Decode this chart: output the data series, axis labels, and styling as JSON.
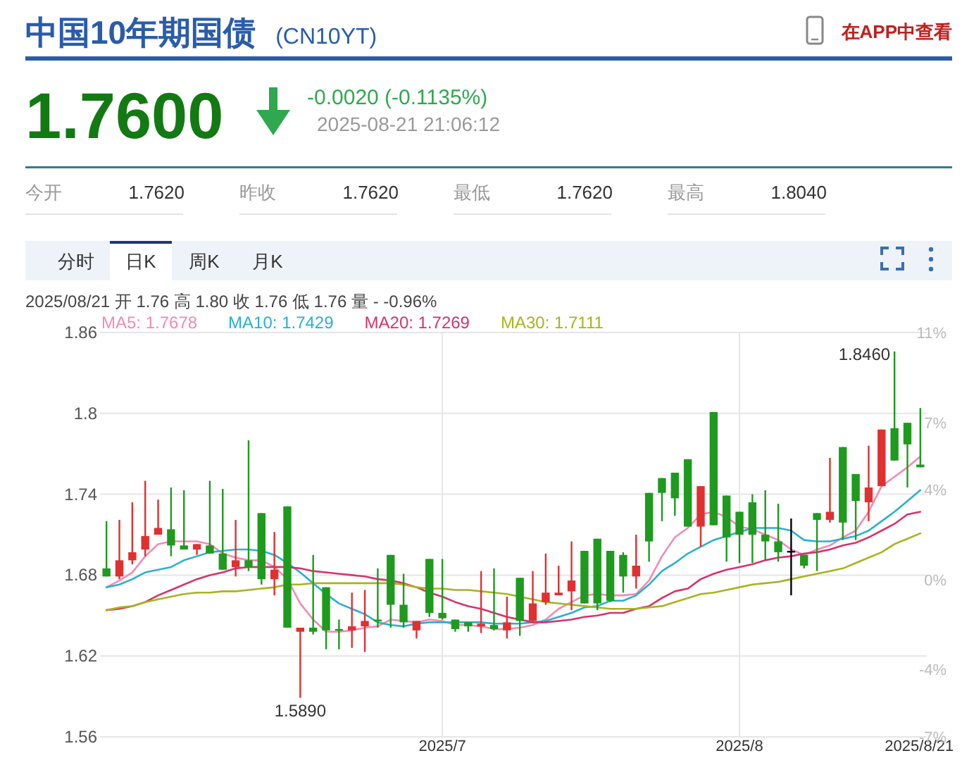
{
  "chart_data": {
    "type": "candlestick",
    "title": "中国10年期国债",
    "subtitle": "(CN10YT)",
    "categories": [
      null,
      null,
      null,
      null,
      null,
      null,
      null,
      null,
      null,
      null,
      null,
      null,
      null,
      null,
      null,
      null,
      null,
      null,
      null,
      null,
      null,
      null,
      null,
      null,
      null,
      null,
      "2025/7",
      null,
      null,
      null,
      null,
      null,
      null,
      null,
      null,
      null,
      null,
      null,
      null,
      null,
      null,
      null,
      null,
      null,
      null,
      null,
      null,
      null,
      null,
      "2025/8",
      null,
      null,
      null,
      null,
      null,
      null,
      null,
      null,
      null,
      null,
      null,
      null,
      null,
      "2025/8/21"
    ],
    "ohlc": [
      [
        1.685,
        1.72,
        1.679,
        1.679
      ],
      [
        1.679,
        1.721,
        1.677,
        1.691
      ],
      [
        1.691,
        1.734,
        1.688,
        1.697
      ],
      [
        1.699,
        1.75,
        1.694,
        1.709
      ],
      [
        1.71,
        1.736,
        1.71,
        1.715
      ],
      [
        1.714,
        1.745,
        1.694,
        1.702
      ],
      [
        1.702,
        1.743,
        1.699,
        1.699
      ],
      [
        1.699,
        1.703,
        1.695,
        1.703
      ],
      [
        1.702,
        1.75,
        1.696,
        1.696
      ],
      [
        1.696,
        1.744,
        1.684,
        1.684
      ],
      [
        1.686,
        1.721,
        1.679,
        1.691
      ],
      [
        1.691,
        1.78,
        1.683,
        1.686
      ],
      [
        1.726,
        1.726,
        1.673,
        1.677
      ],
      [
        1.677,
        1.712,
        1.665,
        1.684
      ],
      [
        1.731,
        1.731,
        1.641,
        1.641
      ],
      [
        1.638,
        1.641,
        1.589,
        1.641
      ],
      [
        1.641,
        1.695,
        1.636,
        1.638
      ],
      [
        1.671,
        1.671,
        1.625,
        1.639
      ],
      [
        1.64,
        1.647,
        1.625,
        1.639
      ],
      [
        1.639,
        1.667,
        1.626,
        1.642
      ],
      [
        1.642,
        1.669,
        1.623,
        1.646
      ],
      [
        1.647,
        1.685,
        1.641,
        1.646
      ],
      [
        1.695,
        1.695,
        1.641,
        1.658
      ],
      [
        1.658,
        1.681,
        1.641,
        1.645
      ],
      [
        1.639,
        1.646,
        1.633,
        1.646
      ],
      [
        1.692,
        1.692,
        1.649,
        1.652
      ],
      [
        1.652,
        1.692,
        1.647,
        1.648
      ],
      [
        1.647,
        1.647,
        1.638,
        1.64
      ],
      [
        1.645,
        1.645,
        1.638,
        1.642
      ],
      [
        1.642,
        1.683,
        1.637,
        1.644
      ],
      [
        1.643,
        1.685,
        1.639,
        1.64
      ],
      [
        1.639,
        1.664,
        1.633,
        1.645
      ],
      [
        1.678,
        1.678,
        1.635,
        1.646
      ],
      [
        1.646,
        1.683,
        1.645,
        1.659
      ],
      [
        1.66,
        1.696,
        1.658,
        1.667
      ],
      [
        1.665,
        1.687,
        1.665,
        1.667
      ],
      [
        1.668,
        1.705,
        1.654,
        1.676
      ],
      [
        1.698,
        1.698,
        1.659,
        1.659
      ],
      [
        1.707,
        1.707,
        1.654,
        1.659
      ],
      [
        1.698,
        1.698,
        1.66,
        1.661
      ],
      [
        1.695,
        1.697,
        1.667,
        1.679
      ],
      [
        1.679,
        1.71,
        1.67,
        1.687
      ],
      [
        1.741,
        1.741,
        1.69,
        1.705
      ],
      [
        1.752,
        1.752,
        1.72,
        1.741
      ],
      [
        1.756,
        1.756,
        1.724,
        1.737
      ],
      [
        1.766,
        1.766,
        1.716,
        1.716
      ],
      [
        1.716,
        1.746,
        1.701,
        1.746
      ],
      [
        1.801,
        1.801,
        1.717,
        1.717
      ],
      [
        1.739,
        1.739,
        1.69,
        1.708
      ],
      [
        1.727,
        1.727,
        1.689,
        1.71
      ],
      [
        1.734,
        1.74,
        1.689,
        1.71
      ],
      [
        1.71,
        1.743,
        1.691,
        1.705
      ],
      [
        1.705,
        1.733,
        1.69,
        1.697
      ],
      [
        1.698,
        1.722,
        1.665,
        1.698
      ],
      [
        1.695,
        1.695,
        1.685,
        1.687
      ],
      [
        1.726,
        1.726,
        1.683,
        1.721
      ],
      [
        1.721,
        1.767,
        1.719,
        1.727
      ],
      [
        1.775,
        1.775,
        1.706,
        1.719
      ],
      [
        1.755,
        1.755,
        1.706,
        1.735
      ],
      [
        1.734,
        1.776,
        1.72,
        1.745
      ],
      [
        1.746,
        1.788,
        1.746,
        1.788
      ],
      [
        1.789,
        1.846,
        1.765,
        1.765
      ],
      [
        1.793,
        1.793,
        1.745,
        1.777
      ],
      [
        1.762,
        1.804,
        1.76,
        1.76
      ]
    ],
    "colors": [
      "#1e9a1e",
      "#e03030",
      "#e03030",
      "#e03030",
      "#e03030",
      "#1e9a1e",
      "#1e9a1e",
      "#e03030",
      "#1e9a1e",
      "#1e9a1e",
      "#e03030",
      "#1e9a1e",
      "#1e9a1e",
      "#e03030",
      "#1e9a1e",
      "#e03030",
      "#1e9a1e",
      "#1e9a1e",
      "#1e9a1e",
      "#e03030",
      "#e03030",
      "#1e9a1e",
      "#1e9a1e",
      "#1e9a1e",
      "#e03030",
      "#1e9a1e",
      "#1e9a1e",
      "#1e9a1e",
      "#1e9a1e",
      "#e03030",
      "#1e9a1e",
      "#e03030",
      "#1e9a1e",
      "#e03030",
      "#e03030",
      "#e03030",
      "#e03030",
      "#1e9a1e",
      "#1e9a1e",
      "#1e9a1e",
      "#1e9a1e",
      "#e03030",
      "#1e9a1e",
      "#1e9a1e",
      "#1e9a1e",
      "#1e9a1e",
      "#e03030",
      "#1e9a1e",
      "#1e9a1e",
      "#1e9a1e",
      "#1e9a1e",
      "#1e9a1e",
      "#1e9a1e",
      "#000000",
      "#1e9a1e",
      "#1e9a1e",
      "#e03030",
      "#1e9a1e",
      "#1e9a1e",
      "#e03030",
      "#e03030",
      "#1e9a1e",
      "#1e9a1e",
      "#1e9a1e"
    ],
    "series": [
      {
        "name": "MA5: 1.7678",
        "type": "line",
        "color": "#f08cb4",
        "values": [
          1.671,
          1.676,
          1.682,
          1.694,
          1.703,
          1.705,
          1.705,
          1.705,
          1.703,
          1.696,
          1.693,
          1.691,
          1.691,
          1.686,
          1.677,
          1.659,
          1.647,
          1.638,
          1.638,
          1.639,
          1.641,
          1.642,
          1.647,
          1.646,
          1.645,
          1.647,
          1.646,
          1.643,
          1.643,
          1.642,
          1.64,
          1.64,
          1.641,
          1.643,
          1.647,
          1.655,
          1.66,
          1.665,
          1.666,
          1.665,
          1.665,
          1.666,
          1.676,
          1.694,
          1.708,
          1.715,
          1.725,
          1.727,
          1.723,
          1.716,
          1.714,
          1.71,
          1.706,
          1.699,
          1.695,
          1.699,
          1.702,
          1.708,
          1.713,
          1.727,
          1.746,
          1.753,
          1.76,
          1.768
        ]
      },
      {
        "name": "MA10: 1.7429",
        "type": "line",
        "color": "#2ab0d0",
        "values": [
          1.671,
          1.673,
          1.677,
          1.682,
          1.684,
          1.686,
          1.691,
          1.694,
          1.697,
          1.698,
          1.699,
          1.699,
          1.698,
          1.695,
          1.689,
          1.682,
          1.674,
          1.666,
          1.659,
          1.655,
          1.651,
          1.645,
          1.643,
          1.642,
          1.644,
          1.645,
          1.645,
          1.645,
          1.645,
          1.645,
          1.644,
          1.644,
          1.644,
          1.645,
          1.646,
          1.649,
          1.652,
          1.656,
          1.657,
          1.661,
          1.661,
          1.665,
          1.673,
          1.683,
          1.689,
          1.696,
          1.701,
          1.706,
          1.709,
          1.712,
          1.715,
          1.715,
          1.715,
          1.713,
          1.706,
          1.705,
          1.705,
          1.707,
          1.709,
          1.713,
          1.72,
          1.727,
          1.735,
          1.743
        ]
      },
      {
        "name": "MA20: 1.7269",
        "type": "line",
        "color": "#d6336c",
        "values": [
          1.654,
          1.655,
          1.657,
          1.66,
          1.665,
          1.669,
          1.673,
          1.677,
          1.68,
          1.682,
          1.685,
          1.686,
          1.686,
          1.686,
          1.686,
          1.685,
          1.683,
          1.682,
          1.681,
          1.68,
          1.679,
          1.677,
          1.676,
          1.674,
          1.671,
          1.667,
          1.664,
          1.66,
          1.657,
          1.655,
          1.652,
          1.649,
          1.647,
          1.645,
          1.645,
          1.646,
          1.647,
          1.649,
          1.65,
          1.652,
          1.652,
          1.655,
          1.657,
          1.663,
          1.668,
          1.67,
          1.677,
          1.681,
          1.684,
          1.686,
          1.688,
          1.691,
          1.693,
          1.694,
          1.696,
          1.697,
          1.699,
          1.702,
          1.704,
          1.708,
          1.713,
          1.718,
          1.725,
          1.727
        ]
      },
      {
        "name": "MA30: 1.7111",
        "type": "line",
        "color": "#a8b41e",
        "values": [
          1.654,
          1.656,
          1.657,
          1.66,
          1.662,
          1.664,
          1.666,
          1.667,
          1.667,
          1.668,
          1.668,
          1.669,
          1.67,
          1.671,
          1.673,
          1.673,
          1.674,
          1.674,
          1.674,
          1.674,
          1.674,
          1.674,
          1.674,
          1.673,
          1.671,
          1.67,
          1.67,
          1.669,
          1.669,
          1.668,
          1.667,
          1.666,
          1.664,
          1.662,
          1.66,
          1.659,
          1.658,
          1.657,
          1.656,
          1.655,
          1.655,
          1.655,
          1.656,
          1.657,
          1.66,
          1.663,
          1.666,
          1.667,
          1.669,
          1.671,
          1.673,
          1.674,
          1.675,
          1.677,
          1.679,
          1.681,
          1.683,
          1.685,
          1.689,
          1.693,
          1.697,
          1.703,
          1.707,
          1.711
        ]
      }
    ],
    "ylim": [
      1.56,
      1.86
    ],
    "yticks": [
      1.56,
      1.62,
      1.68,
      1.74,
      1.8,
      1.86
    ],
    "y2lim": [
      -7,
      11
    ],
    "y2ticks": [
      {
        "value": -7,
        "label": "-7%"
      },
      {
        "value": -4,
        "label": "-4%"
      },
      {
        "value": 0,
        "label": "0%"
      },
      {
        "value": 4,
        "label": "4%"
      },
      {
        "value": 7,
        "label": "7%"
      },
      {
        "value": 11,
        "label": "11%"
      }
    ],
    "grid": true,
    "legend": "top left",
    "annotations": [
      "在APP中查看",
      "1.7600",
      "-0.0020 (-0.1135%)",
      "2025-08-21 21:06:12",
      "今开",
      "1.7620",
      "昨收",
      "1.7620",
      "最低",
      "1.7620",
      "最高",
      "1.8040",
      "分时",
      "日K",
      "周K",
      "月K",
      "2025/08/21 开 1.76 高 1.80 收 1.76 低 1.76 量 - -0.96%",
      {
        "text": "1.5890",
        "y": 1.589
      },
      "1.8460"
    ]
  }
}
